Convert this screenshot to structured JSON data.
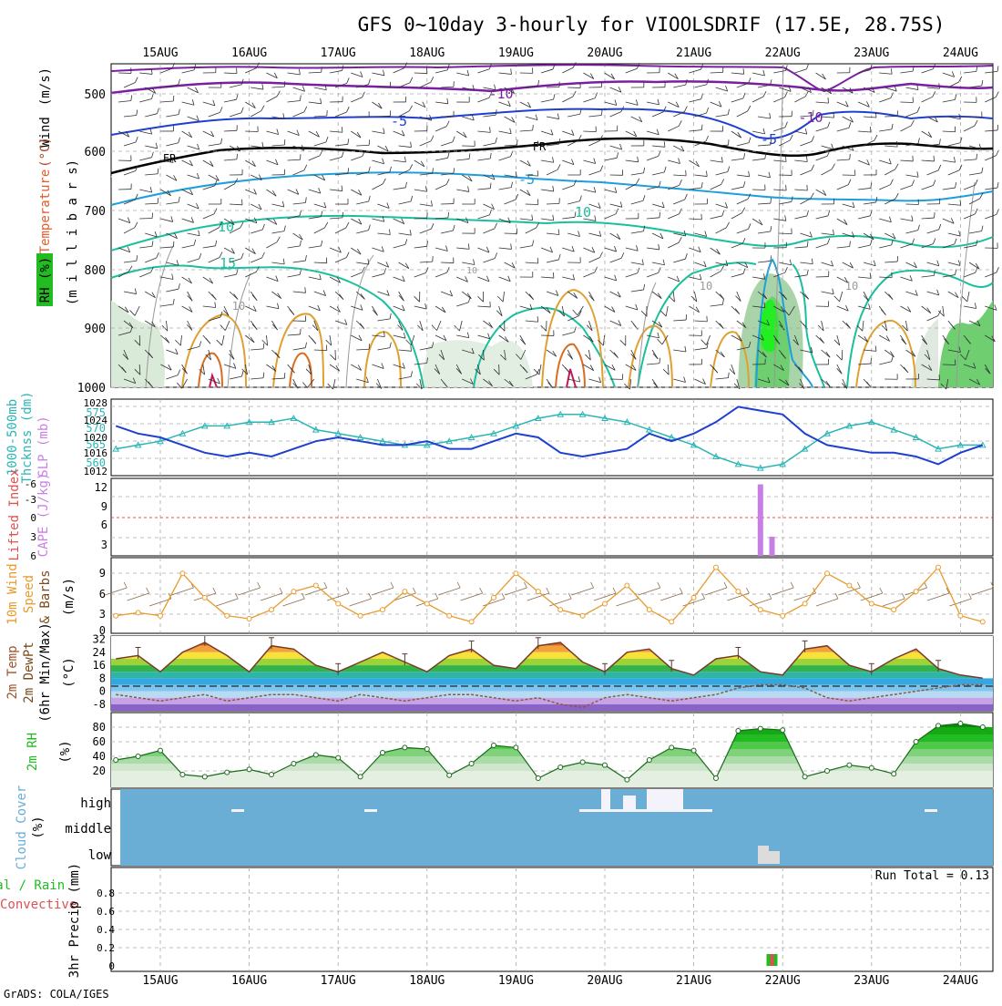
{
  "title": "GFS 0~10day 3-hourly for VIOOLSDRIF (17.5E, 28.75S)",
  "credit": "GrADS: COLA/IGES",
  "run_total": "Run Total = 0.13",
  "date_labels": [
    "15AUG",
    "16AUG",
    "17AUG",
    "18AUG",
    "19AUG",
    "20AUG",
    "21AUG",
    "22AUG",
    "23AUG",
    "24AUG"
  ],
  "panels": {
    "upper": {
      "label_wind": "Wind",
      "label_wind_unit": "(m/s)",
      "label_temp": "Temperature",
      "label_temp_unit": "(°C)",
      "label_rh": "RH (%)",
      "label_mb": "(m i l l i b a r s)",
      "yticks": [
        "500",
        "600",
        "700",
        "800",
        "900",
        "1000"
      ],
      "contour_labels": [
        "-10",
        "-10",
        "-5",
        "-5",
        "FR",
        "FR",
        "-5",
        "10",
        "15",
        "10",
        "10",
        "10",
        "10",
        "10"
      ]
    },
    "slp": {
      "label_thick": "1000-500mb",
      "label_thick2": "Thcknss (dm)",
      "label_slp": "SLP (mb)",
      "left_ticks": [
        "575",
        "570",
        "565",
        "560"
      ],
      "right_ticks": [
        "1028",
        "1024",
        "1020",
        "1016",
        "1012"
      ]
    },
    "cape": {
      "label_li": "Lifted Index",
      "label_cape": "CAPE (J/kg)",
      "left_ticks": [
        "-6",
        "-3",
        "0",
        "3",
        "6"
      ],
      "right_ticks": [
        "12",
        "9",
        "6",
        "3"
      ]
    },
    "wind10": {
      "label1": "10m Wind",
      "label2": "Speed",
      "label3": "& Barbs",
      "unit": "(m/s)",
      "yticks": [
        "9",
        "6",
        "3",
        "0"
      ]
    },
    "temp2m": {
      "label1": "2m Temp",
      "label2": "2m DewPt",
      "label3": "(6hr Min/Max)",
      "unit": "(°C)",
      "yticks": [
        "32",
        "24",
        "16",
        "8",
        "0",
        "-8"
      ]
    },
    "rh2m": {
      "label": "2m RH",
      "unit": "(%)",
      "yticks": [
        "80",
        "60",
        "40",
        "20"
      ]
    },
    "cloud": {
      "label1": "Cloud Cover",
      "label2": "(%)",
      "levels": [
        "high",
        "middle",
        "low"
      ]
    },
    "precip": {
      "label1": "Total / Rain",
      "label2": "Convective",
      "label3": "3hr Precip (mm)",
      "yticks": [
        "0.8",
        "0.6",
        "0.4",
        "0.2",
        "0"
      ]
    }
  },
  "colors": {
    "slp_line": "#1f3fcf",
    "thickness_line": "#2cb5b5",
    "cape_bar": "#c77fe6",
    "wind10_line": "#e89a2c",
    "cloud_bg": "#6aaed6",
    "rh_green": "#22bb22",
    "fr_line": "#000000"
  },
  "chart_data": [
    {
      "type": "line",
      "name": "slp",
      "x_days": [
        0,
        0.25,
        0.5,
        0.75,
        1,
        1.25,
        1.5,
        1.75,
        2,
        2.25,
        2.5,
        2.75,
        3,
        3.25,
        3.5,
        3.75,
        4,
        4.25,
        4.5,
        4.75,
        5,
        5.25,
        5.5,
        5.75,
        6,
        6.25,
        6.5,
        6.75,
        7,
        7.25,
        7.5,
        7.75,
        8,
        8.25,
        8.5,
        8.75,
        9,
        9.25,
        9.5,
        9.75
      ],
      "values": [
        1023,
        1021,
        1020,
        1018,
        1016,
        1015,
        1016,
        1015,
        1017,
        1019,
        1020,
        1019,
        1018,
        1018,
        1019,
        1017,
        1017,
        1019,
        1021,
        1020,
        1016,
        1015,
        1016,
        1017,
        1021,
        1019,
        1021,
        1024,
        1028,
        1027,
        1026,
        1021,
        1018,
        1017,
        1016,
        1016,
        1015,
        1013,
        1016,
        1018
      ],
      "ylim": [
        1010,
        1030
      ]
    },
    {
      "type": "line",
      "name": "thickness",
      "x_days": [
        0,
        0.25,
        0.5,
        0.75,
        1,
        1.25,
        1.5,
        1.75,
        2,
        2.25,
        2.5,
        2.75,
        3,
        3.25,
        3.5,
        3.75,
        4,
        4.25,
        4.5,
        4.75,
        5,
        5.25,
        5.5,
        5.75,
        6,
        6.25,
        6.5,
        6.75,
        7,
        7.25,
        7.5,
        7.75,
        8,
        8.25,
        8.5,
        8.75,
        9,
        9.25,
        9.5,
        9.75
      ],
      "values": [
        565,
        566,
        567,
        569,
        571,
        571,
        572,
        572,
        573,
        570,
        569,
        568,
        567,
        566,
        566,
        567,
        568,
        569,
        571,
        573,
        574,
        574,
        573,
        572,
        570,
        568,
        566,
        563,
        561,
        560,
        561,
        565,
        569,
        571,
        572,
        570,
        568,
        565,
        566,
        566
      ],
      "ylim": [
        558,
        578
      ]
    },
    {
      "type": "bar",
      "name": "cape",
      "x_days": [
        7.25,
        7.38
      ],
      "values": [
        12,
        3.2
      ],
      "ylim": [
        0,
        13
      ]
    },
    {
      "type": "line",
      "name": "wind10",
      "x_days": [
        0,
        0.25,
        0.5,
        0.75,
        1,
        1.25,
        1.5,
        1.75,
        2,
        2.25,
        2.5,
        2.75,
        3,
        3.25,
        3.5,
        3.75,
        4,
        4.25,
        4.5,
        4.75,
        5,
        5.25,
        5.5,
        5.75,
        6,
        6.25,
        6.5,
        6.75,
        7,
        7.25,
        7.5,
        7.75,
        8,
        8.25,
        8.5,
        8.75,
        9,
        9.25,
        9.5,
        9.75
      ],
      "values": [
        2,
        2.5,
        2,
        9,
        5,
        2,
        1.5,
        3,
        6,
        7,
        4,
        2,
        3,
        6,
        4,
        2,
        1,
        5,
        9,
        6,
        3,
        2,
        4,
        7,
        3,
        1,
        5,
        10,
        6,
        3,
        2,
        4,
        9,
        7,
        4,
        3,
        6,
        10,
        2,
        1
      ],
      "ylim": [
        0,
        11
      ]
    },
    {
      "type": "area",
      "name": "temp2m",
      "x_days": [
        0,
        0.25,
        0.5,
        0.75,
        1,
        1.25,
        1.5,
        1.75,
        2,
        2.25,
        2.5,
        2.75,
        3,
        3.25,
        3.5,
        3.75,
        4,
        4.25,
        4.5,
        4.75,
        5,
        5.25,
        5.5,
        5.75,
        6,
        6.25,
        6.5,
        6.75,
        7,
        7.25,
        7.5,
        7.75,
        8,
        8.25,
        8.5,
        8.75,
        9,
        9.25,
        9.5,
        9.75
      ],
      "values": [
        20,
        22,
        12,
        24,
        30,
        22,
        12,
        28,
        26,
        16,
        12,
        18,
        24,
        18,
        12,
        22,
        26,
        16,
        14,
        28,
        30,
        18,
        12,
        24,
        26,
        14,
        10,
        20,
        22,
        12,
        10,
        26,
        28,
        16,
        12,
        20,
        26,
        14,
        10,
        8
      ],
      "dewpoint": [
        -2,
        -4,
        -6,
        -4,
        -2,
        -6,
        -4,
        -2,
        -2,
        -4,
        -6,
        -2,
        -4,
        -6,
        -4,
        -2,
        -2,
        -4,
        -6,
        -4,
        -8,
        -10,
        -4,
        -2,
        -4,
        -6,
        -4,
        -2,
        2,
        4,
        4,
        2,
        -4,
        -6,
        -4,
        -2,
        0,
        2,
        4,
        4
      ],
      "ylim": [
        -12,
        34
      ]
    },
    {
      "type": "area",
      "name": "rh2m",
      "x_days": [
        0,
        0.25,
        0.5,
        0.75,
        1,
        1.25,
        1.5,
        1.75,
        2,
        2.25,
        2.5,
        2.75,
        3,
        3.25,
        3.5,
        3.75,
        4,
        4.25,
        4.5,
        4.75,
        5,
        5.25,
        5.5,
        5.75,
        6,
        6.25,
        6.5,
        6.75,
        7,
        7.25,
        7.5,
        7.75,
        8,
        8.25,
        8.5,
        8.75,
        9,
        9.25,
        9.5,
        9.75
      ],
      "values": [
        35,
        40,
        48,
        15,
        12,
        18,
        22,
        15,
        30,
        42,
        38,
        12,
        45,
        52,
        50,
        14,
        30,
        55,
        52,
        10,
        25,
        32,
        28,
        8,
        35,
        52,
        48,
        10,
        75,
        78,
        76,
        12,
        20,
        28,
        24,
        16,
        60,
        82,
        85,
        80
      ],
      "ylim": [
        0,
        95
      ]
    },
    {
      "type": "bar",
      "name": "precip",
      "x_days": [
        7.38
      ],
      "values": [
        0.13
      ],
      "ylim": [
        0,
        1
      ]
    }
  ]
}
